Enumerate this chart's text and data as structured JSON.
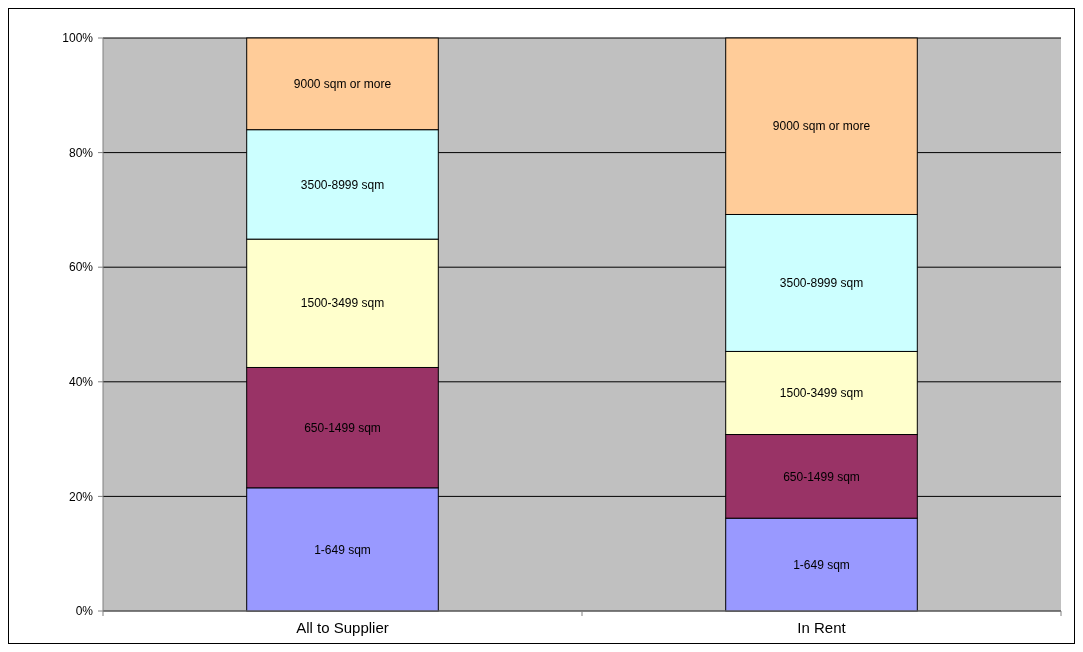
{
  "chart_data": {
    "type": "bar",
    "stacked": true,
    "categories": [
      "All to Supplier",
      "In Rent"
    ],
    "ylim": [
      0,
      100
    ],
    "yticks": [
      {
        "value": 0,
        "label": "0%"
      },
      {
        "value": 20,
        "label": "20%"
      },
      {
        "value": 40,
        "label": "40%"
      },
      {
        "value": 60,
        "label": "60%"
      },
      {
        "value": 80,
        "label": "80%"
      },
      {
        "value": 100,
        "label": "100%"
      }
    ],
    "grid": "y",
    "legend": false,
    "series": [
      {
        "name": "1-649 sqm",
        "color": "#9999ff",
        "values": [
          21.5,
          16.2
        ]
      },
      {
        "name": "650-1499 sqm",
        "color": "#993366",
        "values": [
          21.0,
          14.6
        ]
      },
      {
        "name": "1500-3499 sqm",
        "color": "#ffffcc",
        "values": [
          22.4,
          14.5
        ]
      },
      {
        "name": "3500-8999 sqm",
        "color": "#ccffff",
        "values": [
          19.1,
          23.9
        ]
      },
      {
        "name": "9000 sqm or more",
        "color": "#ffcc99",
        "values": [
          16.0,
          30.8
        ]
      }
    ]
  }
}
